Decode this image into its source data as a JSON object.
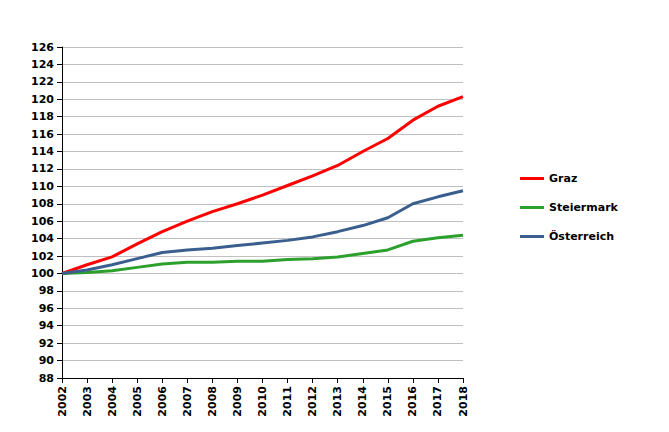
{
  "chart_data": {
    "type": "line",
    "categories": [
      "2002",
      "2003",
      "2004",
      "2005",
      "2006",
      "2007",
      "2008",
      "2009",
      "2010",
      "2011",
      "2012",
      "2013",
      "2014",
      "2015",
      "2016",
      "2017",
      "2018"
    ],
    "series": [
      {
        "name": "Graz",
        "color": "#ff0000",
        "values": [
          100,
          101.0,
          101.9,
          103.4,
          104.8,
          106.0,
          107.1,
          108.0,
          109.0,
          110.1,
          111.2,
          112.4,
          114.0,
          115.5,
          117.6,
          119.2,
          120.3
        ]
      },
      {
        "name": "Steiermark",
        "color": "#2ca02c",
        "values": [
          100,
          100.1,
          100.3,
          100.7,
          101.1,
          101.3,
          101.3,
          101.4,
          101.4,
          101.6,
          101.7,
          101.9,
          102.3,
          102.7,
          103.7,
          104.1,
          104.4
        ]
      },
      {
        "name": "Österreich",
        "color": "#3a5f8f",
        "values": [
          100,
          100.4,
          101.0,
          101.7,
          102.4,
          102.7,
          102.9,
          103.2,
          103.5,
          103.8,
          104.2,
          104.8,
          105.5,
          106.4,
          108.0,
          108.8,
          109.5
        ]
      }
    ],
    "ylim": [
      88,
      126
    ],
    "yticks": [
      88,
      90,
      92,
      94,
      96,
      98,
      100,
      102,
      104,
      106,
      108,
      110,
      112,
      114,
      116,
      118,
      120,
      122,
      124,
      126
    ],
    "grid": true,
    "legend": "right"
  }
}
